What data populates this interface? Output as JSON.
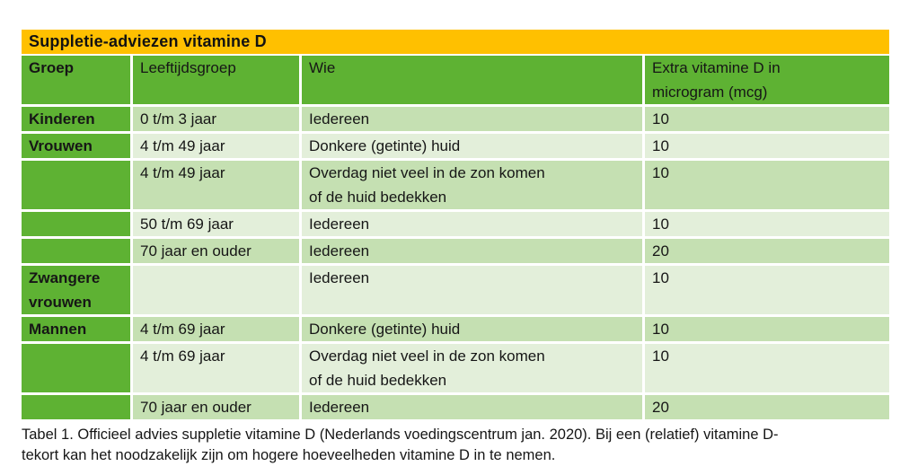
{
  "title": "Suppletie-adviezen vitamine D",
  "table": {
    "columns": {
      "groep": "Groep",
      "leeftijd": "Leeftijdsgroep",
      "wie": "Wie",
      "mcg": "Extra vitamine D in\nmicrogram (mcg)"
    },
    "rows": [
      {
        "groep": "Kinderen",
        "leeftijd": "0 t/m 3 jaar",
        "wie": "Iedereen",
        "mcg": "10"
      },
      {
        "groep": "Vrouwen",
        "leeftijd": "4 t/m 49 jaar",
        "wie": "Donkere (getinte) huid",
        "mcg": "10"
      },
      {
        "groep": "",
        "leeftijd": "4 t/m 49 jaar",
        "wie": "Overdag niet veel in de zon komen\nof de huid bedekken",
        "mcg": "10"
      },
      {
        "groep": "",
        "leeftijd": "50 t/m 69 jaar",
        "wie": "Iedereen",
        "mcg": "10"
      },
      {
        "groep": "",
        "leeftijd": "70 jaar en ouder",
        "wie": "Iedereen",
        "mcg": "20"
      },
      {
        "groep": "Zwangere\nvrouwen",
        "leeftijd": "",
        "wie": "Iedereen",
        "mcg": "10"
      },
      {
        "groep": "Mannen",
        "leeftijd": "4 t/m 69 jaar",
        "wie": "Donkere (getinte) huid",
        "mcg": "10"
      },
      {
        "groep": "",
        "leeftijd": "4 t/m 69 jaar",
        "wie": "Overdag niet veel in de zon komen\nof de huid bedekken",
        "mcg": "10"
      },
      {
        "groep": "",
        "leeftijd": "70 jaar en ouder",
        "wie": "Iedereen",
        "mcg": "20"
      }
    ]
  },
  "caption": "Tabel 1. Officieel advies suppletie vitamine D (Nederlands voedingscentrum jan. 2020). Bij een (relatief) vitamine D-\ntekort kan het noodzakelijk zijn om hogere hoeveelheden vitamine D in te nemen.",
  "colors": {
    "title_bg": "#FFC000",
    "header_green": "#5EB233",
    "row_medium_green": "#C5E0B2",
    "row_light_green": "#E3EFDA",
    "text": "#161616",
    "border": "#FFFFFF"
  }
}
